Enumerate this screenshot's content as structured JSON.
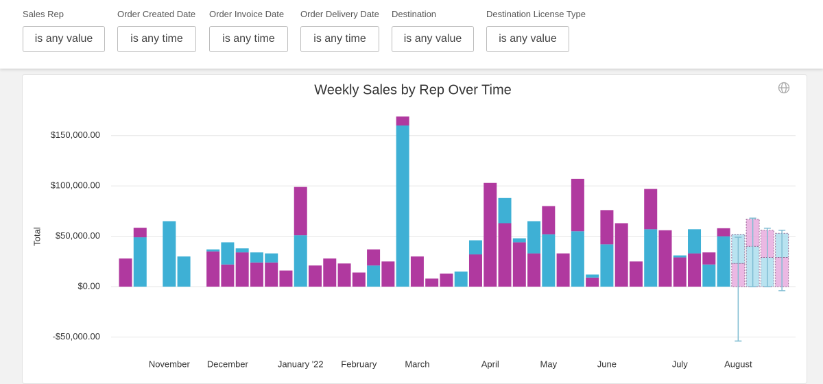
{
  "filters": [
    {
      "label": "Sales Rep",
      "value": "is any value"
    },
    {
      "label": "Order Created Date",
      "value": "is any time"
    },
    {
      "label": "Order Invoice Date",
      "value": "is any time"
    },
    {
      "label": "Order Delivery Date",
      "value": "is any time"
    },
    {
      "label": "Destination",
      "value": "is any value"
    },
    {
      "label": "Destination License Type",
      "value": "is any value"
    }
  ],
  "chart_data": {
    "type": "bar",
    "stacked": true,
    "title": "Weekly Sales by Rep Over Time",
    "y_label": "Total",
    "categories": [
      null,
      null,
      null,
      "November",
      null,
      null,
      null,
      "December",
      null,
      null,
      null,
      null,
      "January '22",
      null,
      null,
      null,
      "February",
      null,
      null,
      null,
      "March",
      null,
      null,
      null,
      null,
      "April",
      null,
      null,
      null,
      "May",
      null,
      null,
      null,
      "June",
      null,
      null,
      null,
      null,
      "July",
      null,
      null,
      null,
      "August",
      null,
      null,
      null
    ],
    "series": [
      {
        "color": "#b0399f",
        "values": [
          28000,
          null,
          null,
          null,
          null,
          null,
          35000,
          22000,
          34000,
          24000,
          24000,
          16000,
          null,
          21000,
          28000,
          23000,
          14000,
          null,
          25000,
          null,
          30000,
          8000,
          13000,
          null,
          32000,
          103000,
          63000,
          44000,
          33000,
          null,
          33000,
          null,
          9000,
          null,
          63000,
          25000,
          null,
          56000,
          29000,
          33000,
          null,
          null,
          null,
          null,
          null,
          null
        ]
      },
      {
        "color": "#3eb0d5",
        "values": [
          null,
          49000,
          null,
          65000,
          30000,
          null,
          2000,
          22000,
          4000,
          10000,
          9000,
          null,
          51000,
          null,
          null,
          null,
          null,
          21000,
          null,
          160000,
          null,
          null,
          null,
          15000,
          14000,
          null,
          25000,
          4000,
          32000,
          52000,
          null,
          55000,
          3000,
          42000,
          null,
          null,
          57000,
          null,
          2000,
          24000,
          22000,
          50000,
          null,
          null,
          null,
          null
        ]
      },
      {
        "color": "#b0399f",
        "values": [
          null,
          9500,
          null,
          null,
          null,
          null,
          null,
          null,
          null,
          null,
          null,
          null,
          48000,
          null,
          null,
          null,
          null,
          16000,
          null,
          9000,
          null,
          null,
          null,
          null,
          null,
          null,
          null,
          null,
          null,
          28000,
          null,
          52000,
          null,
          34000,
          null,
          null,
          40000,
          null,
          null,
          null,
          12000,
          8000,
          null,
          null,
          null,
          null
        ]
      },
      {
        "color": "#e6a6dc",
        "dashed": true,
        "values": [
          null,
          null,
          null,
          null,
          null,
          null,
          null,
          null,
          null,
          null,
          null,
          null,
          null,
          null,
          null,
          null,
          null,
          null,
          null,
          null,
          null,
          null,
          null,
          null,
          null,
          null,
          null,
          null,
          null,
          null,
          null,
          null,
          null,
          null,
          null,
          null,
          null,
          null,
          null,
          null,
          null,
          null,
          23000,
          null,
          null,
          29000
        ]
      },
      {
        "color": "#a8dcec",
        "dashed": true,
        "values": [
          null,
          null,
          null,
          null,
          null,
          null,
          null,
          null,
          null,
          null,
          null,
          null,
          null,
          null,
          null,
          null,
          null,
          null,
          null,
          null,
          null,
          null,
          null,
          null,
          null,
          null,
          null,
          null,
          null,
          null,
          null,
          null,
          null,
          null,
          null,
          null,
          null,
          null,
          null,
          null,
          null,
          null,
          29000,
          40000,
          29000,
          24000
        ]
      },
      {
        "color": "#e6a6dc",
        "dashed": true,
        "values": [
          null,
          null,
          null,
          null,
          null,
          null,
          null,
          null,
          null,
          null,
          null,
          null,
          null,
          null,
          null,
          null,
          null,
          null,
          null,
          null,
          null,
          null,
          null,
          null,
          null,
          null,
          null,
          null,
          null,
          null,
          null,
          null,
          null,
          null,
          null,
          null,
          null,
          null,
          null,
          null,
          null,
          null,
          null,
          27000,
          27000,
          null
        ]
      }
    ],
    "interval_low": [
      null,
      null,
      null,
      null,
      null,
      null,
      null,
      null,
      null,
      null,
      null,
      null,
      null,
      null,
      null,
      null,
      null,
      null,
      null,
      null,
      null,
      null,
      null,
      null,
      null,
      null,
      null,
      null,
      null,
      null,
      null,
      null,
      null,
      null,
      null,
      null,
      null,
      null,
      null,
      null,
      null,
      null,
      -54000,
      0,
      0,
      -4000
    ],
    "interval_high": [
      null,
      null,
      null,
      null,
      null,
      null,
      null,
      null,
      null,
      null,
      null,
      null,
      null,
      null,
      null,
      null,
      null,
      null,
      null,
      null,
      null,
      null,
      null,
      null,
      null,
      null,
      null,
      null,
      null,
      null,
      null,
      null,
      null,
      null,
      null,
      null,
      null,
      null,
      null,
      null,
      null,
      null,
      49000,
      68000,
      58000,
      56000
    ],
    "ylim": [
      -65000,
      175000
    ],
    "yticks": [
      {
        "value": -50000,
        "label": "-$50,000.00"
      },
      {
        "value": 0,
        "label": "$0.00"
      },
      {
        "value": 50000,
        "label": "$50,000.00"
      },
      {
        "value": 100000,
        "label": "$100,000.00"
      },
      {
        "value": 150000,
        "label": "$150,000.00"
      }
    ],
    "grid": true
  }
}
